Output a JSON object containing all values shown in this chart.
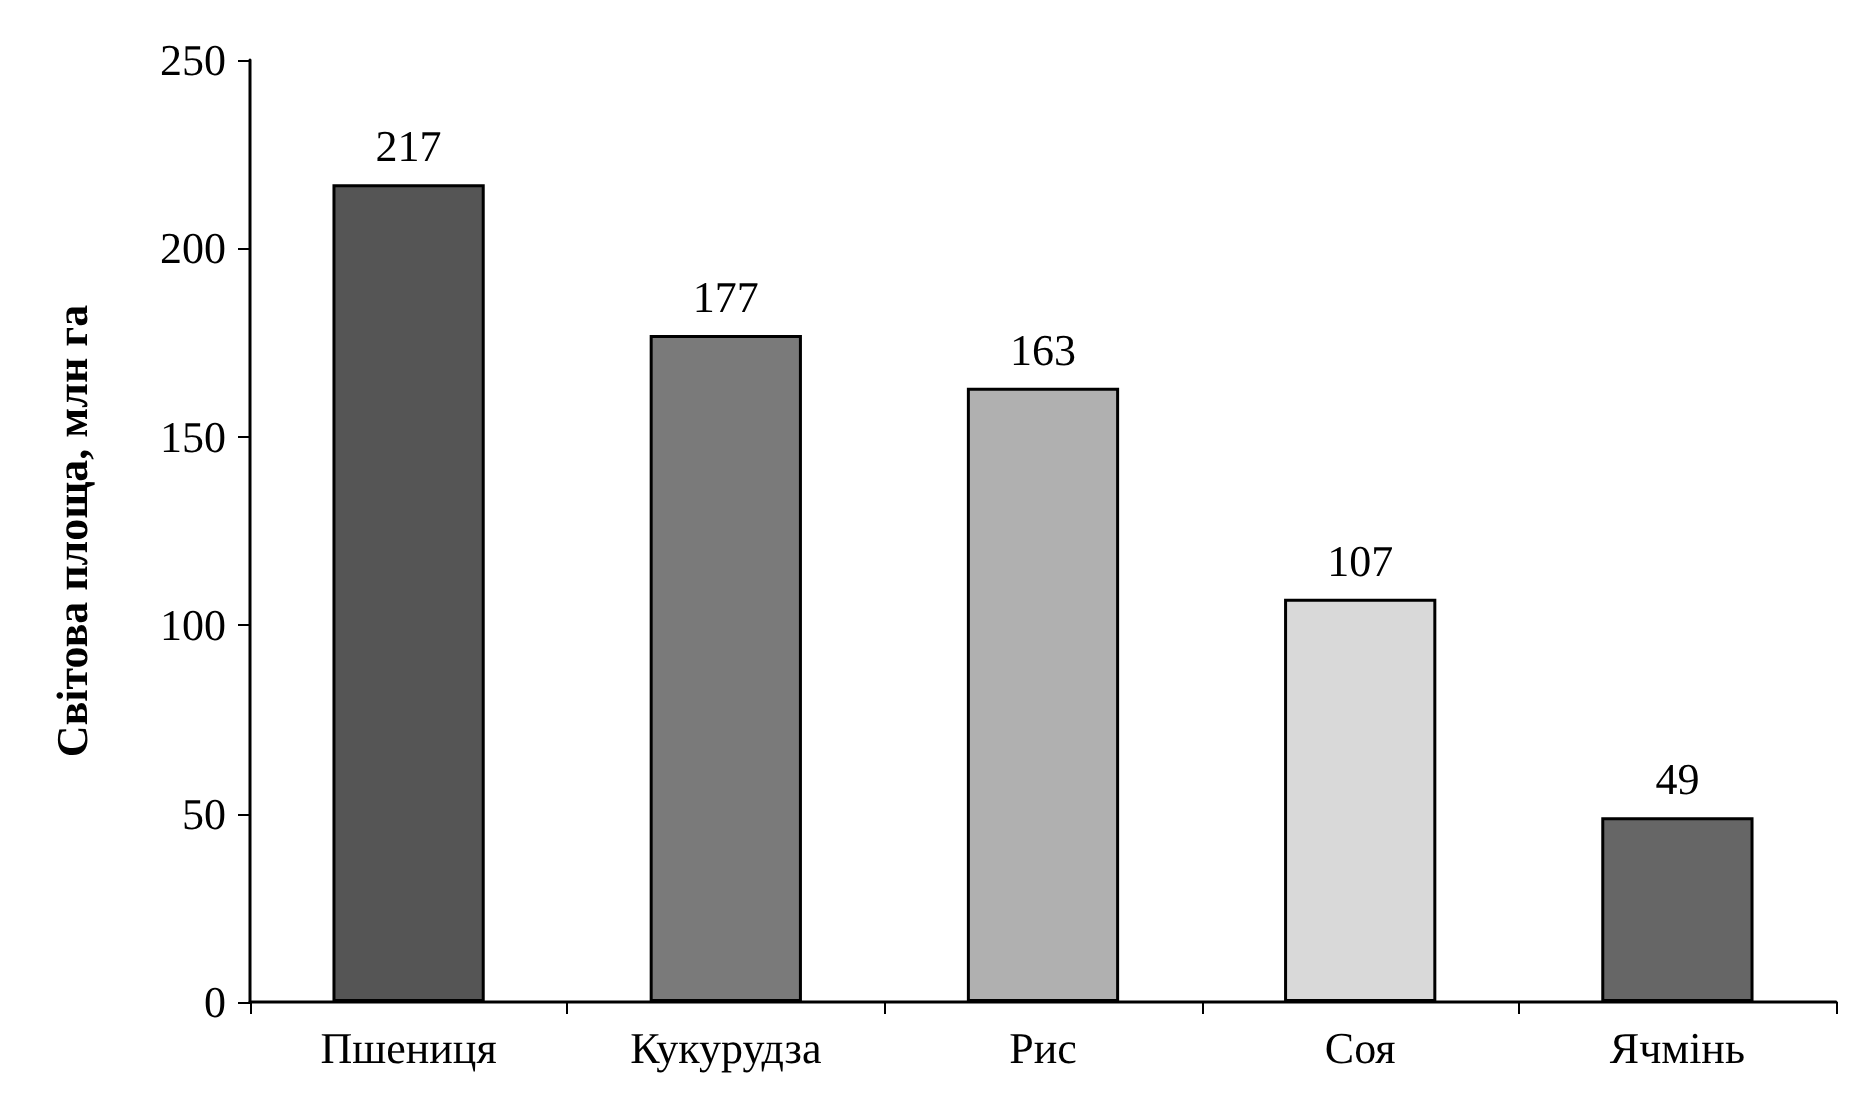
{
  "chart_data": {
    "type": "bar",
    "ylabel": "Світова площа, млн га",
    "categories": [
      "Пшениця",
      "Кукурудза",
      "Рис",
      "Соя",
      "Ячмінь"
    ],
    "values": [
      217,
      177,
      163,
      107,
      49
    ],
    "colors": [
      "#555555",
      "#7a7a7a",
      "#b0b0b0",
      "#d9d9d9",
      "#666666"
    ],
    "ylim": [
      0,
      250
    ],
    "yticks": [
      0,
      50,
      100,
      150,
      200,
      250
    ],
    "grid": false,
    "data_labels": true
  }
}
